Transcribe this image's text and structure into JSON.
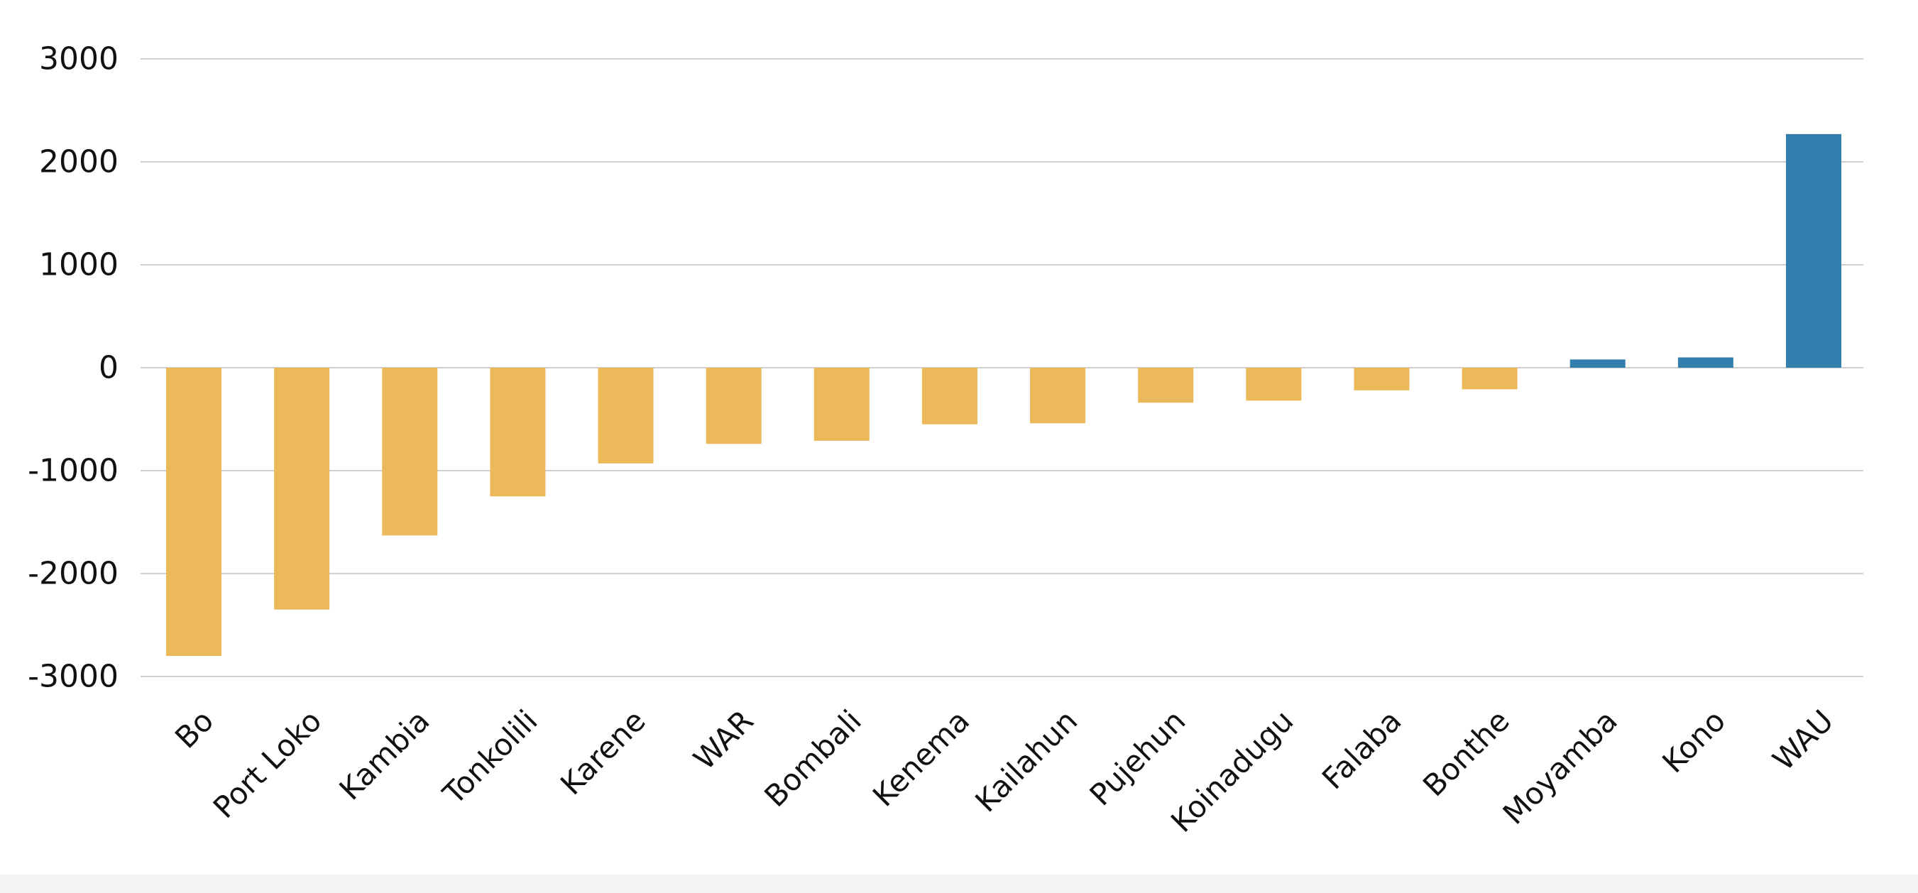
{
  "chart_data": {
    "type": "bar",
    "categories": [
      "Bo",
      "Port Loko",
      "Kambia",
      "Tonkolili",
      "Karene",
      "WAR",
      "Bombali",
      "Kenema",
      "Kailahun",
      "Pujehun",
      "Koinadugu",
      "Falaba",
      "Bonthe",
      "Moyamba",
      "Kono",
      "WAU"
    ],
    "values": [
      -2800,
      -2350,
      -1630,
      -1250,
      -930,
      -740,
      -710,
      -550,
      -540,
      -340,
      -320,
      -220,
      -210,
      80,
      100,
      2270
    ],
    "title": "",
    "xlabel": "",
    "ylabel": "",
    "ylim": [
      -3000,
      3000
    ],
    "yticks": [
      3000,
      2000,
      1000,
      0,
      -1000,
      -2000,
      -3000
    ],
    "ytick_labels": [
      "3000",
      "2000",
      "1000",
      "0",
      "-1000",
      "-2000",
      "-3000"
    ],
    "grid": true,
    "legend": "none",
    "colors": {
      "negative": "#EBB95A",
      "positive": "#347EAD",
      "grid": "#CFCFCF"
    }
  }
}
